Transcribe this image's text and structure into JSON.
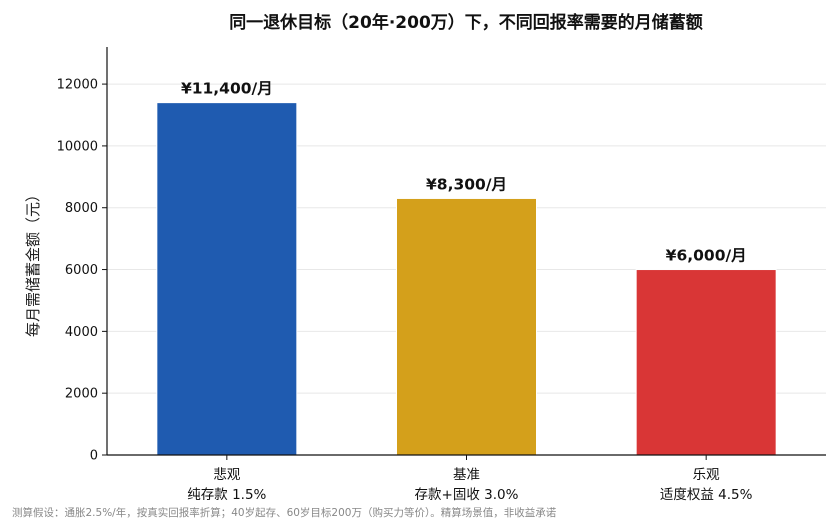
{
  "chart_data": {
    "type": "bar",
    "title": "同一退休目标（20年·200万）下，不同回报率需要的月储蓄额",
    "ylabel": "每月需储蓄金额（元）",
    "xlabel": "",
    "ylim": [
      0,
      13200
    ],
    "yticks": [
      0,
      2000,
      4000,
      6000,
      8000,
      10000,
      12000
    ],
    "grid": true,
    "categories": [
      {
        "line1": "悲观",
        "line2": "纯存款 1.5%"
      },
      {
        "line1": "基准",
        "line2": "存款+固收 3.0%"
      },
      {
        "line1": "乐观",
        "line2": "适度权益 4.5%"
      }
    ],
    "values": [
      11400,
      8300,
      6000
    ],
    "data_labels": [
      "¥11,400/月",
      "¥8,300/月",
      "¥6,000/月"
    ],
    "colors": [
      "#1f5bb0",
      "#d4a01b",
      "#d93636"
    ]
  },
  "footnote": "测算假设：通胀2.5%/年，按真实回报率折算；40岁起存、60岁目标200万（购买力等价）。精算场景值，非收益承诺"
}
